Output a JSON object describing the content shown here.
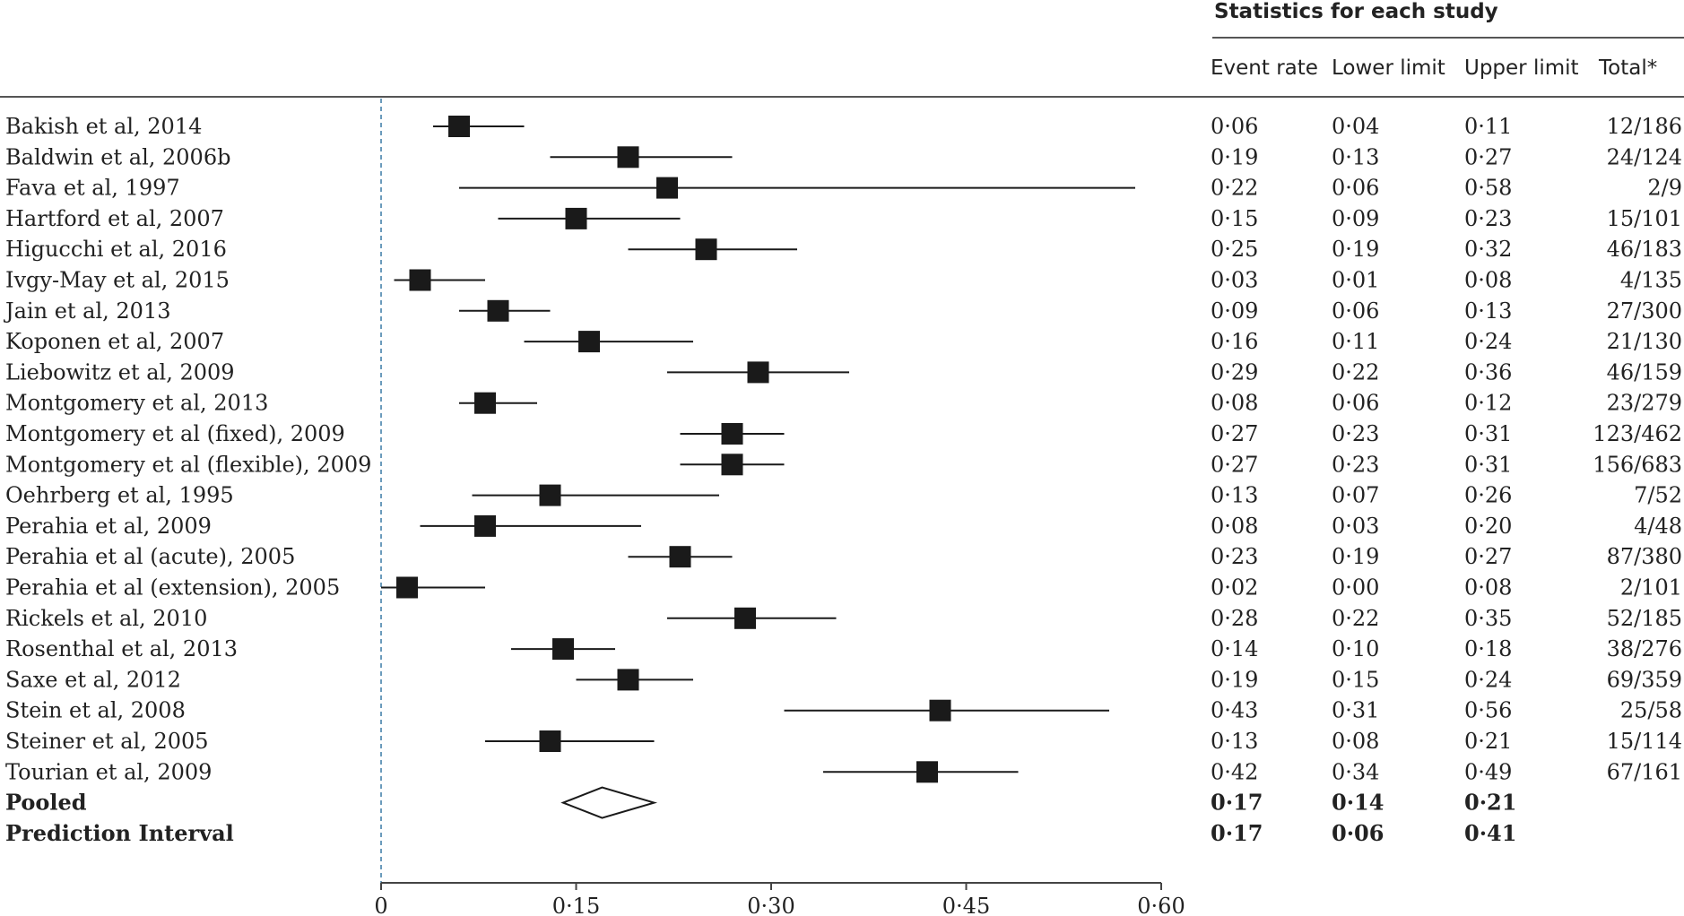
{
  "chart_data": {
    "type": "forest",
    "header": {
      "group_title": "Statistics for each study",
      "columns": [
        "Event rate",
        "Lower limit",
        "Upper limit",
        "Total*"
      ]
    },
    "xlim": [
      0,
      0.6
    ],
    "x_ticks": [
      {
        "value": 0,
        "label": "0"
      },
      {
        "value": 0.15,
        "label": "0·15"
      },
      {
        "value": 0.3,
        "label": "0·30"
      },
      {
        "value": 0.45,
        "label": "0·45"
      },
      {
        "value": 0.6,
        "label": "0·60"
      }
    ],
    "studies": [
      {
        "name": "Bakish et al, 2014",
        "rate": 0.06,
        "lower": 0.04,
        "upper": 0.11,
        "rate_label": "0·06",
        "lower_label": "0·04",
        "upper_label": "0·11",
        "total": "12/186"
      },
      {
        "name": "Baldwin et al, 2006b",
        "rate": 0.19,
        "lower": 0.13,
        "upper": 0.27,
        "rate_label": "0·19",
        "lower_label": "0·13",
        "upper_label": "0·27",
        "total": "24/124"
      },
      {
        "name": "Fava et al, 1997",
        "rate": 0.22,
        "lower": 0.06,
        "upper": 0.58,
        "rate_label": "0·22",
        "lower_label": "0·06",
        "upper_label": "0·58",
        "total": "2/9"
      },
      {
        "name": "Hartford et al, 2007",
        "rate": 0.15,
        "lower": 0.09,
        "upper": 0.23,
        "rate_label": "0·15",
        "lower_label": "0·09",
        "upper_label": "0·23",
        "total": "15/101"
      },
      {
        "name": "Higucchi et al, 2016",
        "rate": 0.25,
        "lower": 0.19,
        "upper": 0.32,
        "rate_label": "0·25",
        "lower_label": "0·19",
        "upper_label": "0·32",
        "total": "46/183"
      },
      {
        "name": "Ivgy-May et al, 2015",
        "rate": 0.03,
        "lower": 0.01,
        "upper": 0.08,
        "rate_label": "0·03",
        "lower_label": "0·01",
        "upper_label": "0·08",
        "total": "4/135"
      },
      {
        "name": "Jain et al, 2013",
        "rate": 0.09,
        "lower": 0.06,
        "upper": 0.13,
        "rate_label": "0·09",
        "lower_label": "0·06",
        "upper_label": "0·13",
        "total": "27/300"
      },
      {
        "name": "Koponen et al, 2007",
        "rate": 0.16,
        "lower": 0.11,
        "upper": 0.24,
        "rate_label": "0·16",
        "lower_label": "0·11",
        "upper_label": "0·24",
        "total": "21/130"
      },
      {
        "name": "Liebowitz et al, 2009",
        "rate": 0.29,
        "lower": 0.22,
        "upper": 0.36,
        "rate_label": "0·29",
        "lower_label": "0·22",
        "upper_label": "0·36",
        "total": "46/159"
      },
      {
        "name": "Montgomery et al, 2013",
        "rate": 0.08,
        "lower": 0.06,
        "upper": 0.12,
        "rate_label": "0·08",
        "lower_label": "0·06",
        "upper_label": "0·12",
        "total": "23/279"
      },
      {
        "name": "Montgomery et al (fixed), 2009",
        "rate": 0.27,
        "lower": 0.23,
        "upper": 0.31,
        "rate_label": "0·27",
        "lower_label": "0·23",
        "upper_label": "0·31",
        "total": "123/462"
      },
      {
        "name": "Montgomery et al (flexible), 2009",
        "rate": 0.27,
        "lower": 0.23,
        "upper": 0.31,
        "rate_label": "0·27",
        "lower_label": "0·23",
        "upper_label": "0·31",
        "total": "156/683"
      },
      {
        "name": "Oehrberg et al, 1995",
        "rate": 0.13,
        "lower": 0.07,
        "upper": 0.26,
        "rate_label": "0·13",
        "lower_label": "0·07",
        "upper_label": "0·26",
        "total": "7/52"
      },
      {
        "name": "Perahia et al, 2009",
        "rate": 0.08,
        "lower": 0.03,
        "upper": 0.2,
        "rate_label": "0·08",
        "lower_label": "0·03",
        "upper_label": "0·20",
        "total": "4/48"
      },
      {
        "name": "Perahia et al (acute), 2005",
        "rate": 0.23,
        "lower": 0.19,
        "upper": 0.27,
        "rate_label": "0·23",
        "lower_label": "0·19",
        "upper_label": "0·27",
        "total": "87/380"
      },
      {
        "name": "Perahia et al (extension), 2005",
        "rate": 0.02,
        "lower": 0.0,
        "upper": 0.08,
        "rate_label": "0·02",
        "lower_label": "0·00",
        "upper_label": "0·08",
        "total": "2/101"
      },
      {
        "name": "Rickels et al, 2010",
        "rate": 0.28,
        "lower": 0.22,
        "upper": 0.35,
        "rate_label": "0·28",
        "lower_label": "0·22",
        "upper_label": "0·35",
        "total": "52/185"
      },
      {
        "name": "Rosenthal et al, 2013",
        "rate": 0.14,
        "lower": 0.1,
        "upper": 0.18,
        "rate_label": "0·14",
        "lower_label": "0·10",
        "upper_label": "0·18",
        "total": "38/276"
      },
      {
        "name": "Saxe et al, 2012",
        "rate": 0.19,
        "lower": 0.15,
        "upper": 0.24,
        "rate_label": "0·19",
        "lower_label": "0·15",
        "upper_label": "0·24",
        "total": "69/359"
      },
      {
        "name": "Stein et al, 2008",
        "rate": 0.43,
        "lower": 0.31,
        "upper": 0.56,
        "rate_label": "0·43",
        "lower_label": "0·31",
        "upper_label": "0·56",
        "total": "25/58"
      },
      {
        "name": "Steiner et al, 2005",
        "rate": 0.13,
        "lower": 0.08,
        "upper": 0.21,
        "rate_label": "0·13",
        "lower_label": "0·08",
        "upper_label": "0·21",
        "total": "15/114"
      },
      {
        "name": "Tourian et al, 2009",
        "rate": 0.42,
        "lower": 0.34,
        "upper": 0.49,
        "rate_label": "0·42",
        "lower_label": "0·34",
        "upper_label": "0·49",
        "total": "67/161"
      }
    ],
    "pooled": {
      "name": "Pooled",
      "rate": 0.17,
      "lower": 0.14,
      "upper": 0.21,
      "rate_label": "0·17",
      "lower_label": "0·14",
      "upper_label": "0·21"
    },
    "prediction_interval": {
      "name": "Prediction Interval",
      "rate": 0.17,
      "lower": 0.06,
      "upper": 0.41,
      "rate_label": "0·17",
      "lower_label": "0·06",
      "upper_label": "0·41"
    },
    "reference_line": {
      "value": 0,
      "style": "dashed",
      "color": "#3a7aa6"
    },
    "marker_color": "#1a1a1a"
  }
}
